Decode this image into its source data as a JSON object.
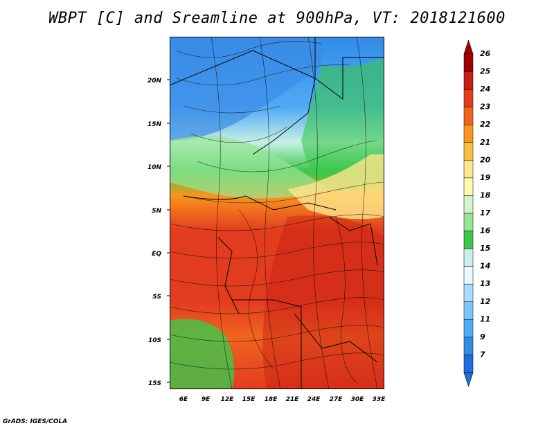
{
  "title": "WBPT [C] and Sreamline at 900hPa, VT: 2018121600",
  "credit": "GrADS: IGES/COLA",
  "map": {
    "lon_ticks": [
      "6E",
      "9E",
      "12E",
      "15E",
      "18E",
      "21E",
      "24E",
      "27E",
      "30E",
      "33E"
    ],
    "lat_ticks": [
      "20N",
      "15N",
      "10N",
      "5N",
      "EQ",
      "5S",
      "10S",
      "15S"
    ]
  },
  "colorbar": {
    "labels": [
      "26",
      "25",
      "24",
      "23",
      "22",
      "21",
      "20",
      "19",
      "18",
      "17",
      "16",
      "15",
      "14",
      "13",
      "12",
      "11",
      "9",
      "7"
    ],
    "colors": [
      "#a00000",
      "#c81e14",
      "#e23c1e",
      "#f06420",
      "#f8961e",
      "#fcc040",
      "#fde68c",
      "#fefab4",
      "#d2f5c8",
      "#96e696",
      "#3cc84b",
      "#c8f0e6",
      "#e6faff",
      "#aadcff",
      "#78c8ff",
      "#50aaf5",
      "#328ce6",
      "#1e6edc"
    ]
  }
}
